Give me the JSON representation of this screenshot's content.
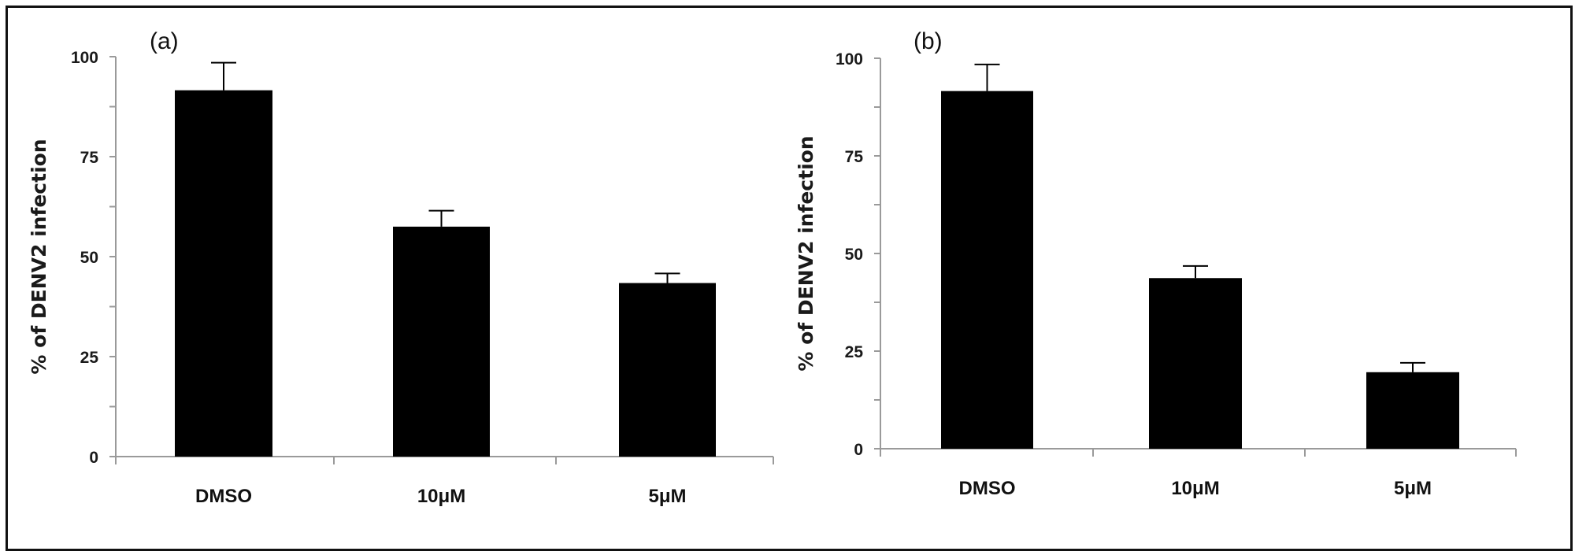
{
  "chart_data": [
    {
      "type": "bar",
      "panel_label": "(a)",
      "title": "",
      "xlabel": "",
      "ylabel": "% of DENV2 infection",
      "categories": [
        "DMSO",
        "10μM",
        "5μM"
      ],
      "values": [
        91.6,
        57.5,
        43.4
      ],
      "error_upper": [
        98.5,
        61.5,
        45.8
      ],
      "ylim": [
        0,
        100
      ],
      "yticks": [
        "0",
        "25",
        "50",
        "75",
        "100"
      ],
      "ytick_values": [
        0,
        25,
        50,
        75,
        100
      ],
      "minor_tick_step": 12.5,
      "grid": false,
      "bar_color": "#000000",
      "axis_color": "#9a9a9a"
    },
    {
      "type": "bar",
      "panel_label": "(b)",
      "title": "",
      "xlabel": "",
      "ylabel": "% of DENV2 infection",
      "categories": [
        "DMSO",
        "10μM",
        "5μM"
      ],
      "values": [
        91.6,
        43.7,
        19.6
      ],
      "error_upper": [
        98.4,
        46.8,
        22.0
      ],
      "ylim": [
        0,
        100
      ],
      "yticks": [
        "0",
        "25",
        "50",
        "75",
        "100"
      ],
      "ytick_values": [
        0,
        25,
        50,
        75,
        100
      ],
      "minor_tick_step": 12.5,
      "grid": false,
      "bar_color": "#000000",
      "axis_color": "#9a9a9a"
    }
  ]
}
